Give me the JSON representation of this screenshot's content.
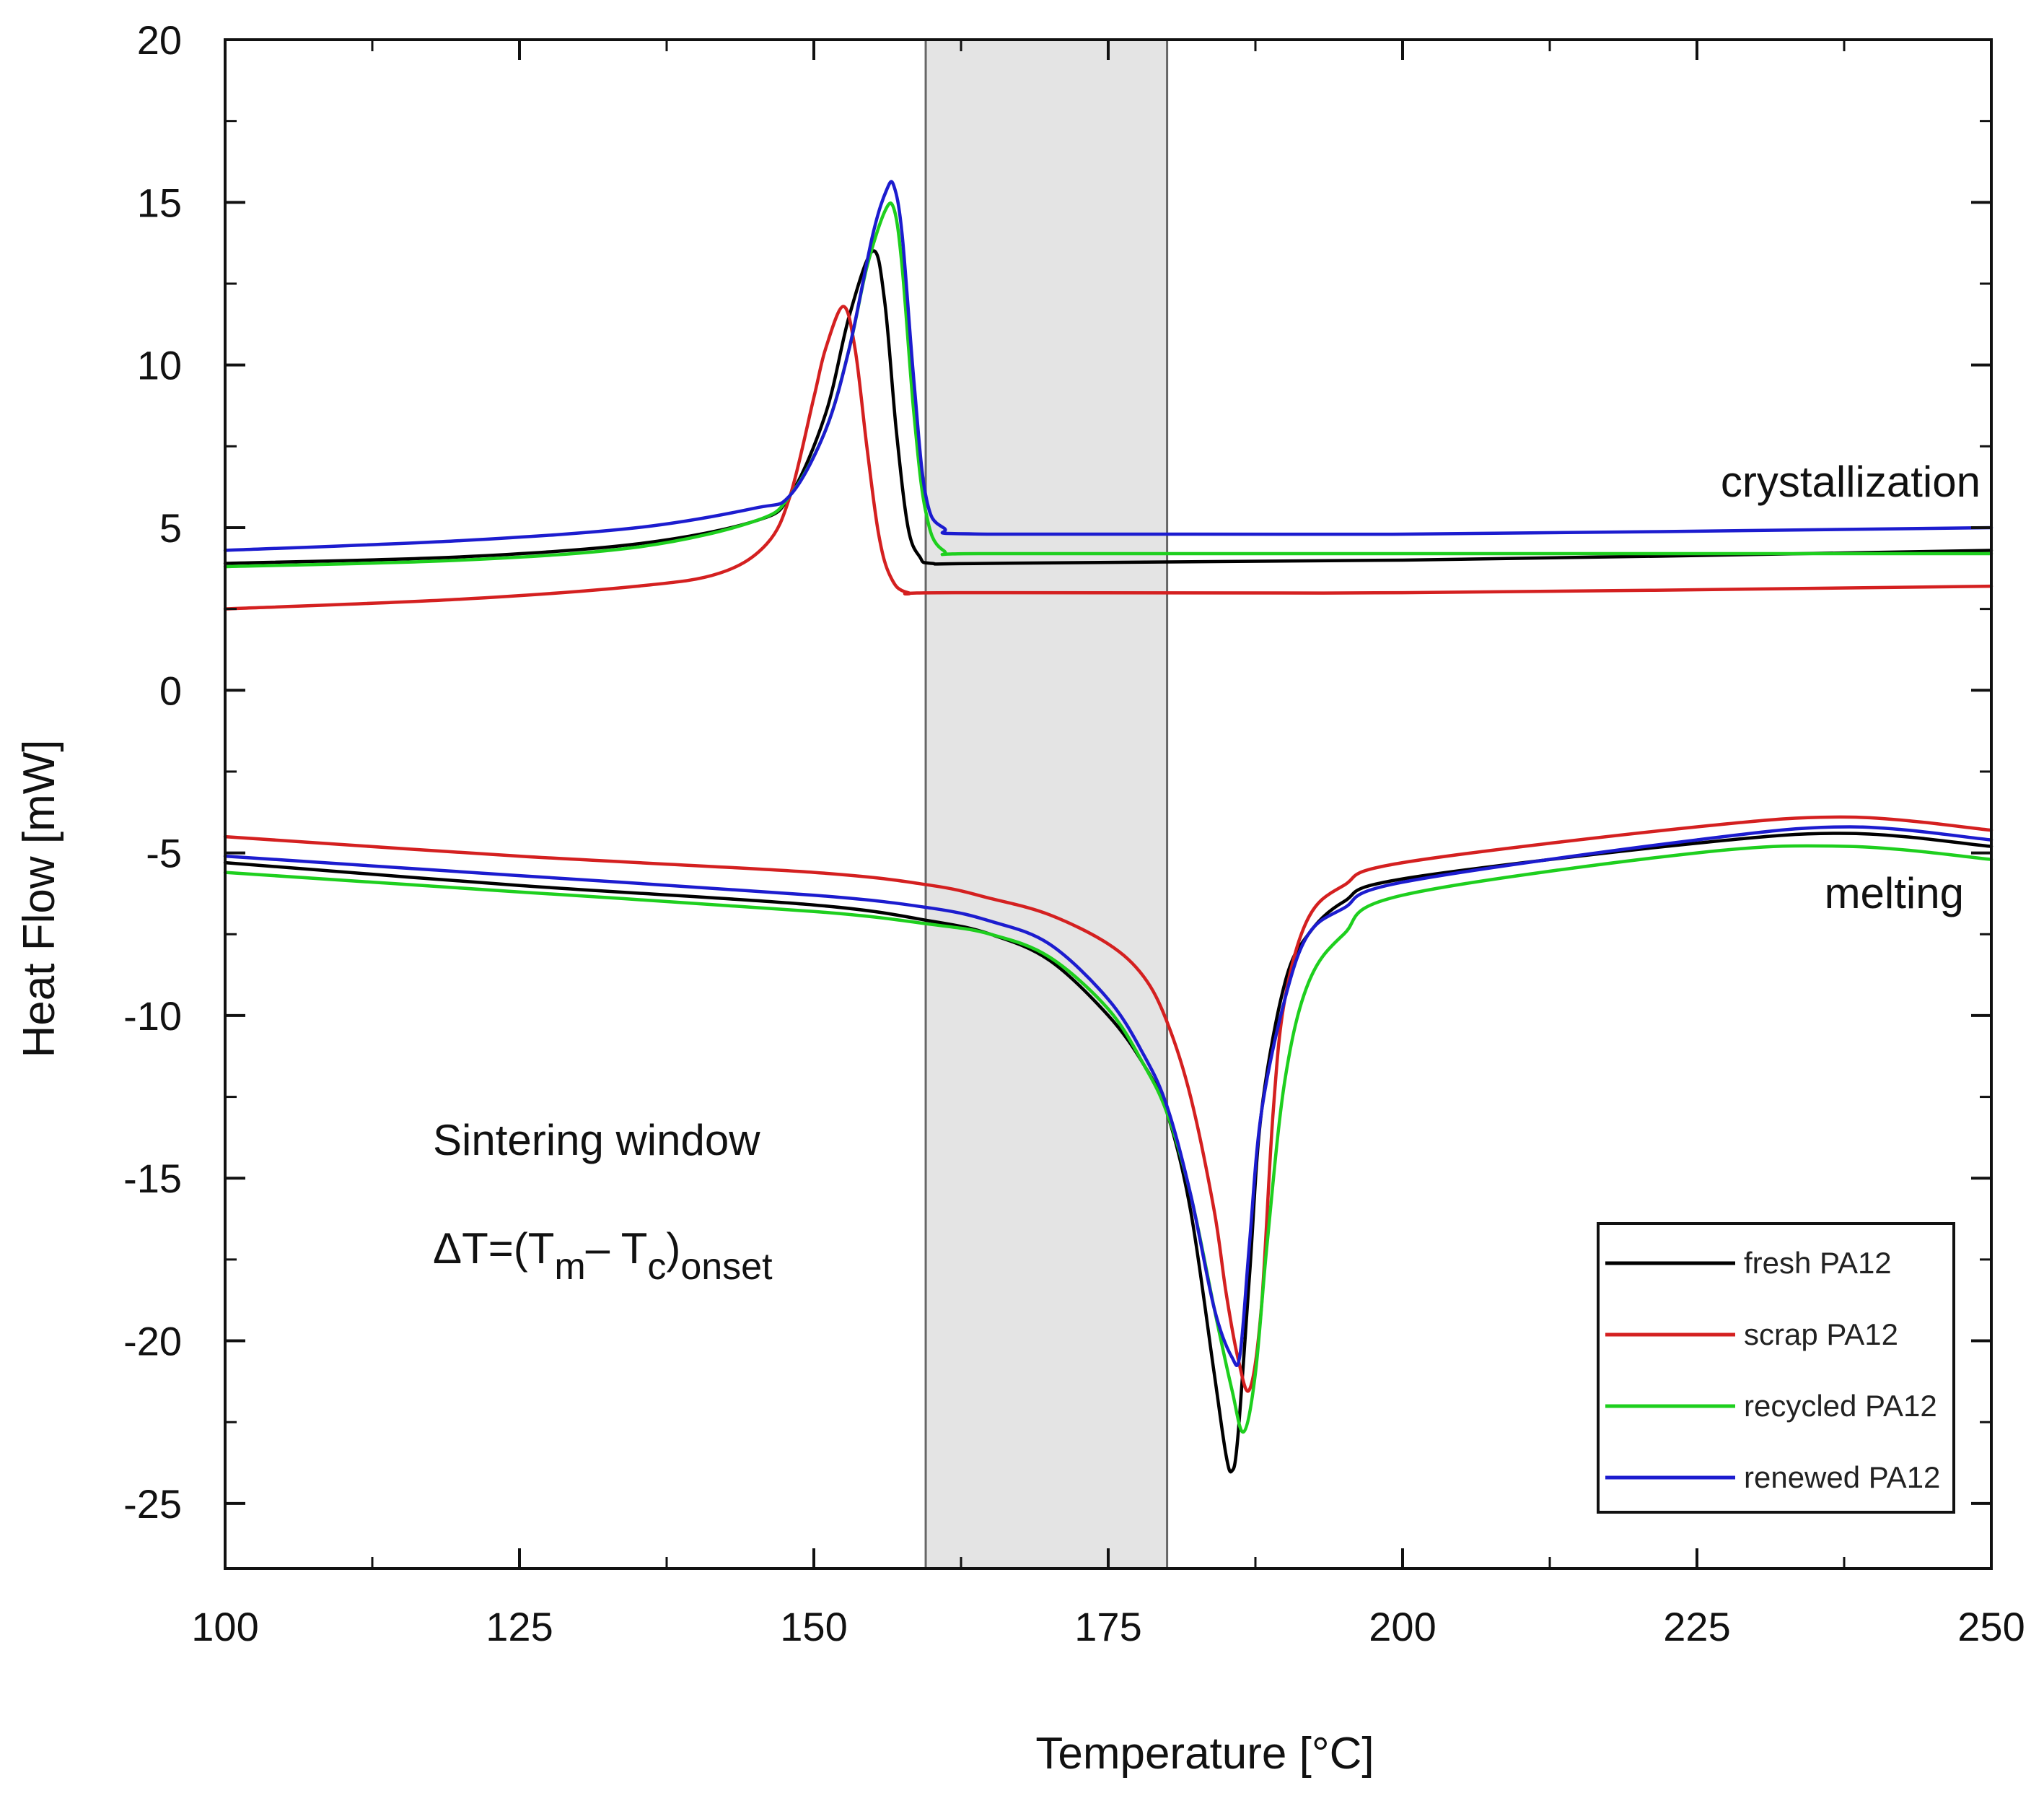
{
  "chart_data": {
    "type": "line",
    "title": "",
    "xlabel": "Temperature [°C]",
    "ylabel": "Heat Flow [mW]",
    "xlim": [
      100,
      250
    ],
    "ylim": [
      -27,
      20
    ],
    "xticks": [
      "100",
      "125",
      "150",
      "175",
      "200",
      "225",
      "250"
    ],
    "yticks": [
      "20",
      "15",
      "10",
      "5",
      "0",
      "-5",
      "-10",
      "-15",
      "-20",
      "-25"
    ],
    "shaded_region": {
      "x_start": 159.5,
      "x_end": 180,
      "color": "#e4e4e4"
    },
    "annotations": {
      "crystallization": "crystallization",
      "melting": "melting",
      "sintering_window": "Sintering window",
      "delta_prefix": "ΔT=(T",
      "delta_m": "m",
      "delta_mid": "– T",
      "delta_c": "c",
      "delta_close": ")",
      "delta_onset": "onset"
    },
    "legend_position": "bottom-right",
    "series": [
      {
        "name": "fresh PA12",
        "color": "#000000",
        "curves": [
          {
            "label": "crystallization",
            "x": [
              100,
              120,
              135,
              145,
              148,
              151,
              153,
              155,
              156,
              157,
              158,
              159,
              160,
              165,
              200,
              250
            ],
            "y": [
              3.9,
              4.1,
              4.5,
              5.2,
              6.0,
              8.5,
              11.5,
              13.5,
              12.0,
              8.0,
              5.0,
              4.1,
              3.9,
              3.9,
              4.0,
              4.3
            ]
          },
          {
            "label": "melting",
            "x": [
              100,
              125,
              150,
              160,
              165,
              170,
              175,
              178,
              180,
              182,
              184,
              185,
              185.5,
              186,
              187,
              188,
              190,
              192,
              195,
              200,
              225,
              238,
              250
            ],
            "y": [
              -5.3,
              -6.0,
              -6.6,
              -7.1,
              -7.5,
              -8.3,
              -10.0,
              -11.5,
              -13.0,
              -16.0,
              -21.0,
              -23.5,
              -24.0,
              -23.0,
              -18.0,
              -13.0,
              -9.0,
              -7.5,
              -6.5,
              -5.8,
              -4.7,
              -4.4,
              -4.8
            ]
          }
        ]
      },
      {
        "name": "scrap PA12",
        "color": "#d42020",
        "curves": [
          {
            "label": "crystallization",
            "x": [
              100,
              120,
              135,
              142,
              146,
              148,
              150,
              151,
              152.5,
              153.5,
              154.5,
              155.5,
              156.5,
              158,
              162,
              200,
              250
            ],
            "y": [
              2.5,
              2.8,
              3.2,
              3.6,
              4.5,
              6.0,
              9.0,
              10.5,
              11.8,
              10.5,
              7.5,
              4.8,
              3.5,
              3.0,
              3.0,
              3.0,
              3.2
            ]
          },
          {
            "label": "melting",
            "x": [
              100,
              125,
              150,
              160,
              165,
              170,
              175,
              178,
              180,
              182,
              184,
              185,
              186,
              187,
              188,
              189,
              190,
              192,
              195,
              200,
              225,
              238,
              250
            ],
            "y": [
              -4.5,
              -5.1,
              -5.6,
              -6.0,
              -6.4,
              -6.9,
              -7.8,
              -8.8,
              -10.2,
              -12.5,
              -16.0,
              -18.5,
              -20.5,
              -21.5,
              -19.0,
              -13.0,
              -9.5,
              -7.0,
              -6.0,
              -5.3,
              -4.2,
              -3.9,
              -4.3
            ]
          }
        ]
      },
      {
        "name": "recycled PA12",
        "color": "#1ecf1e",
        "curves": [
          {
            "label": "crystallization",
            "x": [
              100,
              120,
              135,
              145,
              148,
              151,
              153,
              154.5,
              156,
              156.8,
              157.5,
              158.5,
              159.5,
              161,
              165,
              200,
              250
            ],
            "y": [
              3.8,
              4.0,
              4.4,
              5.2,
              6.0,
              8.0,
              10.5,
              13.0,
              14.7,
              14.8,
              13.0,
              8.5,
              5.5,
              4.3,
              4.2,
              4.2,
              4.2
            ]
          },
          {
            "label": "melting",
            "x": [
              100,
              125,
              150,
              160,
              165,
              170,
              175,
              178,
              180,
              182,
              184,
              185.5,
              186.5,
              187.5,
              188.5,
              190,
              192,
              195,
              200,
              225,
              238,
              250
            ],
            "y": [
              -5.6,
              -6.2,
              -6.8,
              -7.2,
              -7.5,
              -8.2,
              -9.8,
              -11.5,
              -13.0,
              -15.5,
              -19.0,
              -21.5,
              -22.8,
              -21.0,
              -17.0,
              -12.0,
              -9.0,
              -7.5,
              -6.3,
              -5.0,
              -4.8,
              -5.2
            ]
          }
        ]
      },
      {
        "name": "renewed PA12",
        "color": "#1c1ccf",
        "curves": [
          {
            "label": "crystallization",
            "x": [
              100,
              120,
              135,
              145,
              148,
              151,
              153,
              155,
              156.2,
              156.8,
              157.5,
              158.5,
              159.5,
              161,
              165,
              200,
              250
            ],
            "y": [
              4.3,
              4.6,
              5.0,
              5.6,
              6.0,
              8.0,
              10.5,
              14.0,
              15.4,
              15.5,
              14.0,
              9.5,
              6.0,
              5.0,
              4.8,
              4.8,
              5.0
            ]
          },
          {
            "label": "melting",
            "x": [
              100,
              125,
              150,
              160,
              165,
              170,
              175,
              178,
              180,
              182,
              184,
              185.5,
              186.2,
              187,
              188,
              190,
              192,
              195,
              200,
              225,
              238,
              250
            ],
            "y": [
              -5.1,
              -5.7,
              -6.3,
              -6.7,
              -7.1,
              -7.8,
              -9.5,
              -11.2,
              -12.8,
              -15.5,
              -19.0,
              -20.5,
              -20.4,
              -17.0,
              -13.0,
              -9.5,
              -7.5,
              -6.7,
              -5.9,
              -4.6,
              -4.2,
              -4.6
            ]
          }
        ]
      }
    ]
  }
}
